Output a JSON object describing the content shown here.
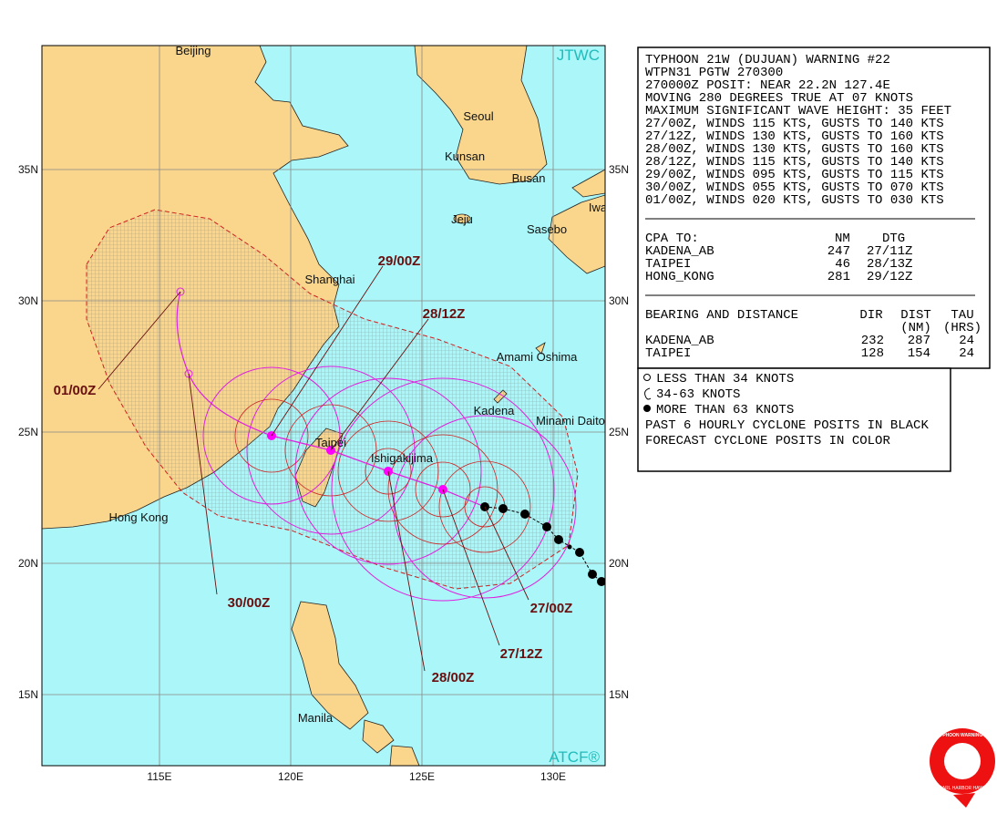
{
  "map": {
    "agency": "JTWC",
    "software": "ATCF®",
    "places": [
      "Beijing",
      "Seoul",
      "Kunsan",
      "Busan",
      "Jeju",
      "Sasebo",
      "Iwa",
      "Shanghai",
      "Amami Oshima",
      "Kadena",
      "Minami Daito",
      "Taipei",
      "Ishigakijima",
      "Hong Kong",
      "Manila"
    ],
    "lat_labels": [
      "35N",
      "30N",
      "25N",
      "20N",
      "15N"
    ],
    "lon_labels": [
      "115E",
      "120E",
      "125E",
      "130E"
    ],
    "forecast_labels": [
      "29/00Z",
      "28/12Z",
      "01/00Z",
      "30/00Z",
      "28/00Z",
      "27/12Z",
      "27/00Z"
    ]
  },
  "header": {
    "lines": [
      "TYPHOON 21W (DUJUAN) WARNING #22",
      "WTPN31 PGTW 270300",
      "270000Z POSIT: NEAR 22.2N 127.4E",
      "MOVING 280 DEGREES TRUE AT 07 KNOTS",
      "MAXIMUM SIGNIFICANT WAVE HEIGHT: 35 FEET",
      "27/00Z, WINDS 115 KTS, GUSTS TO 140 KTS",
      "27/12Z, WINDS 130 KTS, GUSTS TO 160 KTS",
      "28/00Z, WINDS 130 KTS, GUSTS TO 160 KTS",
      "28/12Z, WINDS 115 KTS, GUSTS TO 140 KTS",
      "29/00Z, WINDS 095 KTS, GUSTS TO 115 KTS",
      "30/00Z, WINDS 055 KTS, GUSTS TO 070 KTS",
      "01/00Z, WINDS 020 KTS, GUSTS TO 030 KTS"
    ]
  },
  "cpa": {
    "title": "CPA TO:",
    "columns": [
      "NM",
      "DTG"
    ],
    "rows": [
      [
        "KADENA_AB",
        "247",
        "27/11Z"
      ],
      [
        "TAIPEI",
        "46",
        "28/13Z"
      ],
      [
        "HONG_KONG",
        "281",
        "29/12Z"
      ]
    ]
  },
  "bearing": {
    "title": "BEARING AND DISTANCE",
    "columns": [
      "DIR",
      "DIST",
      "TAU"
    ],
    "units": [
      "(NM)",
      "(HRS)"
    ],
    "rows": [
      [
        "KADENA_AB",
        "232",
        "287",
        "24"
      ],
      [
        "TAIPEI",
        "128",
        "154",
        "24"
      ]
    ]
  },
  "legend": [
    "LESS THAN 34 KNOTS",
    "34-63 KNOTS",
    "MORE THAN 63 KNOTS",
    "PAST 6 HOURLY CYCLONE POSITS IN BLACK",
    "FORECAST CYCLONE POSITS IN COLOR"
  ],
  "logo": {
    "title": "JOINT TYPHOON WARNING CENTER",
    "place": "PEARL HARBOR HAWAII"
  }
}
